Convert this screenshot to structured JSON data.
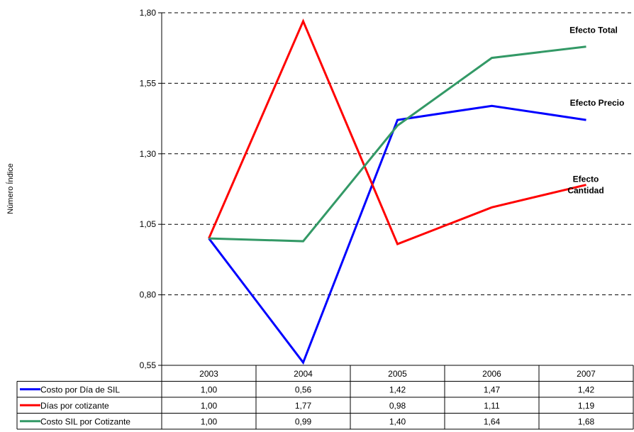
{
  "chart_data": {
    "type": "line",
    "ylabel": "Número Índice",
    "ylim": [
      0.55,
      1.8
    ],
    "y_ticks": [
      "0,55",
      "0,80",
      "1,05",
      "1,30",
      "1,55",
      "1,80"
    ],
    "grid": true,
    "categories": [
      "2003",
      "2004",
      "2005",
      "2006",
      "2007"
    ],
    "series": [
      {
        "name": "Costo por Día de SIL",
        "color": "#0000ff",
        "values": [
          1.0,
          0.56,
          1.42,
          1.47,
          1.42
        ],
        "table_values": [
          "1,00",
          "0,56",
          "1,42",
          "1,47",
          "1,42"
        ]
      },
      {
        "name": "Días por cotizante",
        "color": "#ff0000",
        "values": [
          1.0,
          1.77,
          0.98,
          1.11,
          1.19
        ],
        "table_values": [
          "1,00",
          "1,77",
          "0,98",
          "1,11",
          "1,19"
        ]
      },
      {
        "name": "Costo SIL por Cotizante",
        "color": "#339966",
        "values": [
          1.0,
          0.99,
          1.4,
          1.64,
          1.68
        ],
        "table_values": [
          "1,00",
          "0,99",
          "1,40",
          "1,64",
          "1,68"
        ]
      }
    ],
    "annotations": [
      {
        "lines": [
          "Efecto Total"
        ],
        "series": 2
      },
      {
        "lines": [
          "Efecto Precio"
        ],
        "series": 0
      },
      {
        "lines": [
          "Efecto",
          "Cantidad"
        ],
        "series": 1
      }
    ]
  }
}
